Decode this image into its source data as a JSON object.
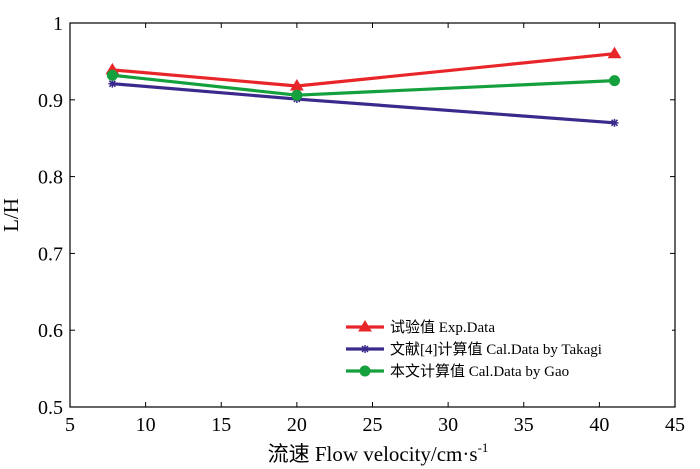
{
  "chart_data": {
    "type": "line",
    "title": "",
    "xlabel": "流速 Flow velocity/cm·s",
    "xlabel_sup": "-1",
    "ylabel": "L/H",
    "xlim": [
      5,
      45
    ],
    "ylim": [
      0.5,
      1.0
    ],
    "xticks": [
      5,
      10,
      15,
      20,
      25,
      30,
      35,
      40,
      45
    ],
    "yticks": [
      0.5,
      0.6,
      0.7,
      0.8,
      0.9,
      1.0
    ],
    "xtick_labels": [
      "5",
      "10",
      "15",
      "20",
      "25",
      "30",
      "35",
      "40",
      "45"
    ],
    "ytick_labels": [
      "0.5",
      "0.6",
      "0.7",
      "0.8",
      "0.9",
      "1"
    ],
    "legend_position": "bottom-right",
    "series": [
      {
        "name": "试验值 Exp.Data",
        "color": "#e8262a",
        "marker": "triangle",
        "x": [
          7.8,
          20,
          41
        ],
        "values": [
          0.939,
          0.918,
          0.96
        ]
      },
      {
        "name": "文献[4]计算值 Cal.Data by Takagi",
        "color": "#3b2a8c",
        "marker": "asterisk",
        "x": [
          7.8,
          20,
          41
        ],
        "values": [
          0.921,
          0.901,
          0.87
        ]
      },
      {
        "name": "本文计算值 Cal.Data by Gao",
        "color": "#14a03c",
        "marker": "circle",
        "x": [
          7.8,
          20,
          41
        ],
        "values": [
          0.932,
          0.906,
          0.925
        ]
      }
    ]
  }
}
